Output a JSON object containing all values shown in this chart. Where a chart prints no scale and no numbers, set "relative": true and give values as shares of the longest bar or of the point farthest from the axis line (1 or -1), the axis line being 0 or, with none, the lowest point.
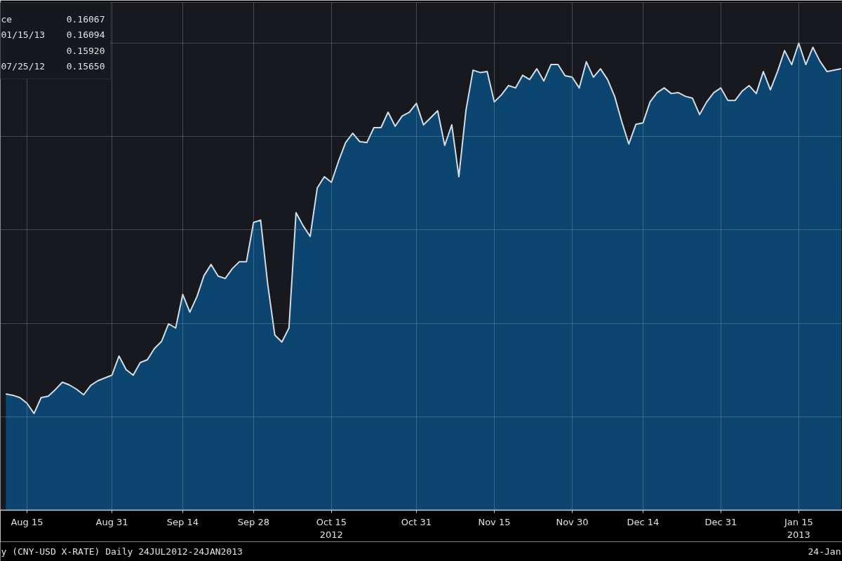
{
  "chart_data": {
    "type": "area",
    "relative": true,
    "grid": true,
    "title": "y (CNY-USD X-RATE) Daily 24JUL2012-24JAN2013",
    "annotations": [
      "ce 0.16067",
      "01/15/13 0.16094",
      "0.15920",
      "07/25/12 0.15650",
      "24-Jan"
    ],
    "categories": [
      null,
      null,
      null,
      "Aug 15",
      null,
      null,
      null,
      null,
      null,
      null,
      null,
      null,
      null,
      null,
      null,
      "Aug 31",
      null,
      null,
      null,
      null,
      null,
      null,
      null,
      null,
      null,
      "Sep 14",
      null,
      null,
      null,
      null,
      null,
      null,
      null,
      null,
      null,
      "Sep 28",
      null,
      null,
      null,
      null,
      null,
      null,
      null,
      null,
      null,
      null,
      "Oct 15\n2012",
      null,
      null,
      null,
      null,
      null,
      null,
      null,
      null,
      null,
      null,
      null,
      "Oct 31",
      null,
      null,
      null,
      null,
      null,
      null,
      null,
      null,
      null,
      null,
      "Nov 15",
      null,
      null,
      null,
      null,
      null,
      null,
      null,
      null,
      null,
      null,
      "Nov 30",
      null,
      null,
      null,
      null,
      null,
      null,
      null,
      null,
      null,
      "Dec 14",
      null,
      null,
      null,
      null,
      null,
      null,
      null,
      null,
      null,
      null,
      "Dec 31",
      null,
      null,
      null,
      null,
      null,
      null,
      null,
      null,
      null,
      null,
      "Jan 15\n2013",
      null,
      null,
      null,
      null,
      null,
      null
    ],
    "series": [
      {
        "color": "#0c4670",
        "values": [
          0.249,
          0.246,
          0.241,
          0.229,
          0.207,
          0.241,
          0.244,
          0.258,
          0.274,
          0.268,
          0.259,
          0.247,
          0.267,
          0.277,
          0.283,
          0.289,
          0.33,
          0.301,
          0.289,
          0.316,
          0.322,
          0.346,
          0.361,
          0.399,
          0.39,
          0.462,
          0.424,
          0.457,
          0.502,
          0.526,
          0.501,
          0.496,
          0.517,
          0.532,
          0.532,
          0.616,
          0.621,
          0.484,
          0.375,
          0.36,
          0.39,
          0.637,
          0.609,
          0.586,
          0.69,
          0.714,
          0.702,
          0.747,
          0.787,
          0.807,
          0.789,
          0.787,
          0.819,
          0.819,
          0.852,
          0.822,
          0.844,
          0.852,
          0.871,
          0.825,
          0.84,
          0.855,
          0.781,
          0.825,
          0.714,
          0.856,
          0.942,
          0.937,
          0.939,
          0.874,
          0.889,
          0.909,
          0.904,
          0.931,
          0.922,
          0.945,
          0.919,
          0.954,
          0.954,
          0.93,
          0.927,
          0.904,
          0.96,
          0.927,
          0.945,
          0.922,
          0.886,
          0.832,
          0.784,
          0.826,
          0.829,
          0.874,
          0.894,
          0.904,
          0.892,
          0.894,
          0.886,
          0.882,
          0.847,
          0.874,
          0.894,
          0.904,
          0.877,
          0.877,
          0.897,
          0.909,
          0.892,
          0.939,
          0.9,
          0.939,
          0.984,
          0.954,
          1,
          0.954,
          0.991,
          0.961,
          0.939,
          0.942,
          0.945
        ]
      }
    ]
  }
}
